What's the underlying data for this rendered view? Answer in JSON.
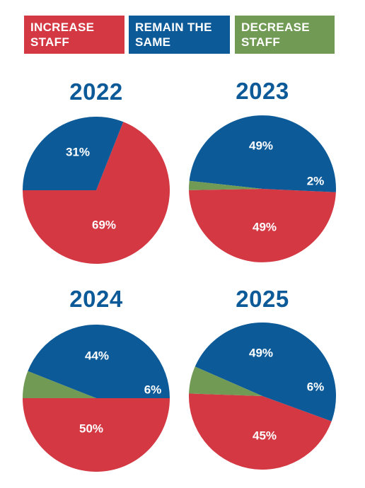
{
  "colors": {
    "increase": "#d33843",
    "same": "#0d5a98",
    "decrease": "#719a55",
    "title": "#0d5a98"
  },
  "legend": [
    {
      "label": "INCREASE\nSTAFF",
      "color": "#d33843"
    },
    {
      "label": "REMAIN THE\nSAME",
      "color": "#0d5a98"
    },
    {
      "label": "DECREASE\nSTAFF",
      "color": "#719a55"
    }
  ],
  "chart_data": [
    {
      "type": "pie",
      "title": "2022",
      "slices": [
        {
          "name": "INCREASE STAFF",
          "value": 69,
          "label": "69%",
          "color": "#d33843"
        },
        {
          "name": "REMAIN THE SAME",
          "value": 31,
          "label": "31%",
          "color": "#0d5a98"
        }
      ]
    },
    {
      "type": "pie",
      "title": "2023",
      "slices": [
        {
          "name": "INCREASE STAFF",
          "value": 49,
          "label": "49%",
          "color": "#d33843"
        },
        {
          "name": "REMAIN THE SAME",
          "value": 49,
          "label": "49%",
          "color": "#0d5a98"
        },
        {
          "name": "DECREASE STAFF",
          "value": 2,
          "label": "2%",
          "color": "#719a55"
        }
      ]
    },
    {
      "type": "pie",
      "title": "2024",
      "slices": [
        {
          "name": "INCREASE STAFF",
          "value": 50,
          "label": "50%",
          "color": "#d33843"
        },
        {
          "name": "REMAIN THE SAME",
          "value": 44,
          "label": "44%",
          "color": "#0d5a98"
        },
        {
          "name": "DECREASE STAFF",
          "value": 6,
          "label": "6%",
          "color": "#719a55"
        }
      ]
    },
    {
      "type": "pie",
      "title": "2025",
      "slices": [
        {
          "name": "INCREASE STAFF",
          "value": 45,
          "label": "45%",
          "color": "#d33843"
        },
        {
          "name": "REMAIN THE SAME",
          "value": 49,
          "label": "49%",
          "color": "#0d5a98"
        },
        {
          "name": "DECREASE STAFF",
          "value": 6,
          "label": "6%",
          "color": "#719a55"
        }
      ]
    }
  ]
}
